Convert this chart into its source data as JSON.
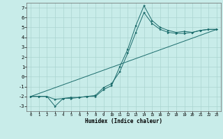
{
  "title": "",
  "xlabel": "Humidex (Indice chaleur)",
  "ylabel": "",
  "background_color": "#c8ece9",
  "grid_color": "#aad4d0",
  "line_color": "#1a6b6b",
  "xlim": [
    -0.5,
    23.5
  ],
  "ylim": [
    -3.5,
    7.5
  ],
  "xticks": [
    0,
    1,
    2,
    3,
    4,
    5,
    6,
    7,
    8,
    9,
    10,
    11,
    12,
    13,
    14,
    15,
    16,
    17,
    18,
    19,
    20,
    21,
    22,
    23
  ],
  "yticks": [
    -3,
    -2,
    -1,
    0,
    1,
    2,
    3,
    4,
    5,
    6,
    7
  ],
  "line1_x": [
    0,
    1,
    2,
    3,
    4,
    5,
    6,
    7,
    8,
    9,
    10,
    11,
    12,
    13,
    14,
    15,
    16,
    17,
    18,
    19,
    20,
    21,
    22,
    23
  ],
  "line1_y": [
    -2.0,
    -2.0,
    -2.0,
    -3.0,
    -2.2,
    -2.2,
    -2.1,
    -2.0,
    -2.0,
    -1.3,
    -0.9,
    1.0,
    2.8,
    5.2,
    7.2,
    5.7,
    5.0,
    4.7,
    4.5,
    4.6,
    4.5,
    4.7,
    4.8,
    4.8
  ],
  "line2_x": [
    0,
    1,
    2,
    3,
    4,
    5,
    6,
    7,
    8,
    9,
    10,
    11,
    12,
    13,
    14,
    15,
    16,
    17,
    18,
    19,
    20,
    21,
    22,
    23
  ],
  "line2_y": [
    -2.0,
    -2.0,
    -2.0,
    -2.3,
    -2.2,
    -2.1,
    -2.1,
    -2.0,
    -1.9,
    -1.1,
    -0.7,
    0.5,
    2.4,
    4.5,
    6.5,
    5.4,
    4.8,
    4.5,
    4.4,
    4.4,
    4.5,
    4.7,
    4.8,
    4.8
  ],
  "line3_x": [
    0,
    23
  ],
  "line3_y": [
    -2.0,
    4.8
  ]
}
